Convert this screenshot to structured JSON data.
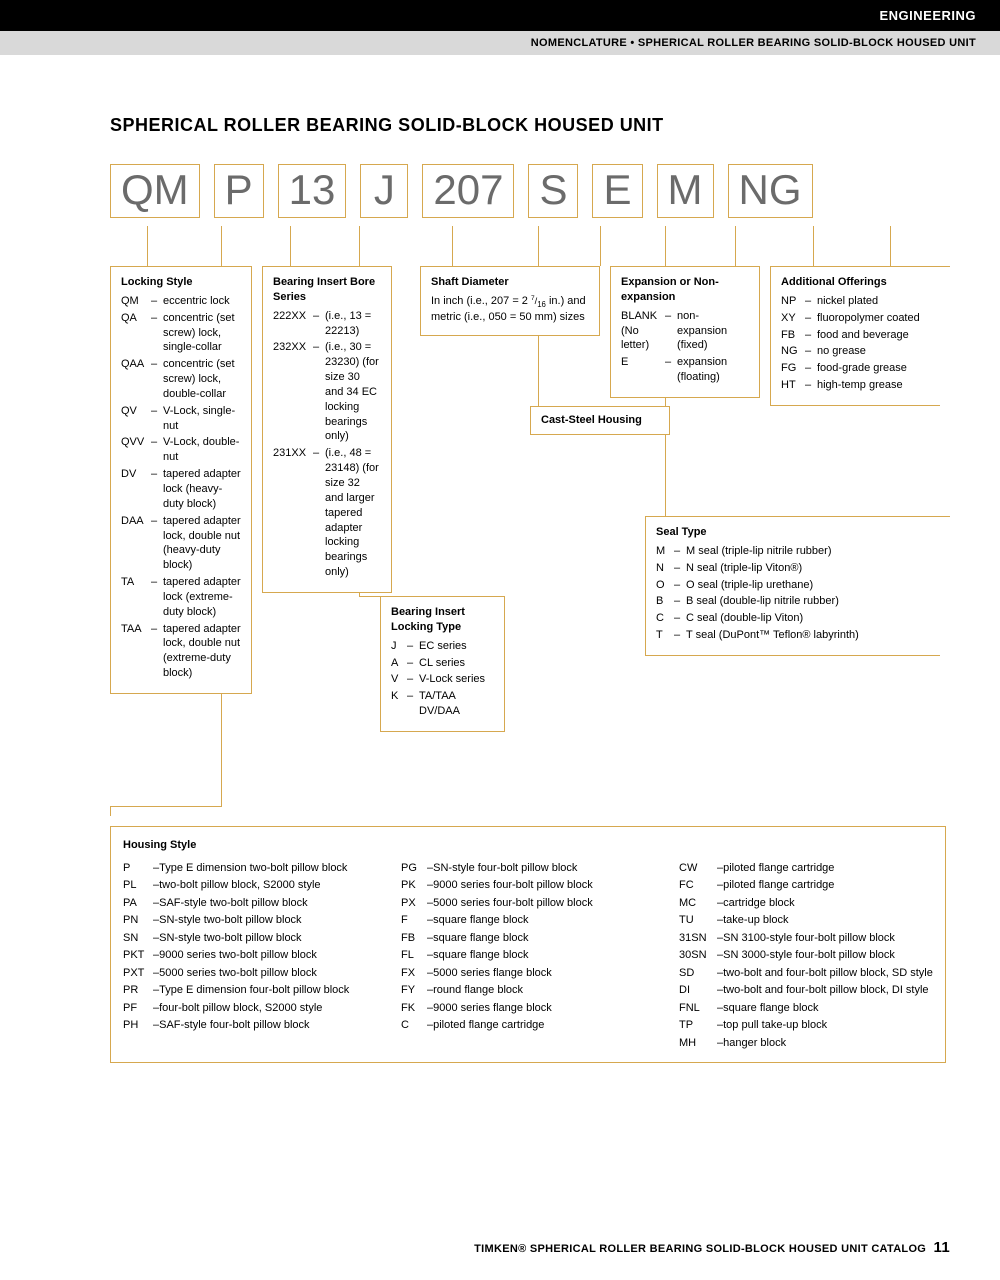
{
  "header": {
    "category": "ENGINEERING",
    "subtitle": "NOMENCLATURE • SPHERICAL ROLLER BEARING SOLID-BLOCK HOUSED UNIT"
  },
  "page_title": "SPHERICAL ROLLER BEARING SOLID-BLOCK HOUSED UNIT",
  "code_parts": [
    "QM",
    "P",
    "13",
    "J",
    "207",
    "S",
    "E",
    "M",
    "NG"
  ],
  "locking_style": {
    "title": "Locking Style",
    "items": [
      {
        "c": "QM",
        "d": "eccentric lock"
      },
      {
        "c": "QA",
        "d": "concentric (set screw) lock, single-collar"
      },
      {
        "c": "QAA",
        "d": "concentric (set screw) lock, double-collar"
      },
      {
        "c": "QV",
        "d": "V-Lock, single-nut"
      },
      {
        "c": "QVV",
        "d": "V-Lock, double-nut"
      },
      {
        "c": "DV",
        "d": "tapered adapter lock (heavy-duty block)"
      },
      {
        "c": "DAA",
        "d": "tapered adapter lock, double nut (heavy-duty block)"
      },
      {
        "c": "TA",
        "d": "tapered adapter lock (extreme-duty block)"
      },
      {
        "c": "TAA",
        "d": "tapered adapter lock, double nut (extreme-duty block)"
      }
    ]
  },
  "bore_series": {
    "title": "Bearing Insert Bore Series",
    "items": [
      {
        "c": "222XX",
        "d": "(i.e., 13 = 22213)"
      },
      {
        "c": "232XX",
        "d": "(i.e., 30 = 23230) (for size 30 and 34 EC locking bearings only)"
      },
      {
        "c": "231XX",
        "d": "(i.e., 48 = 23148) (for size 32 and larger tapered adapter locking bearings only)"
      }
    ]
  },
  "locking_type": {
    "title": "Bearing Insert Locking Type",
    "items": [
      {
        "c": "J",
        "d": "EC series"
      },
      {
        "c": "A",
        "d": "CL series"
      },
      {
        "c": "V",
        "d": "V-Lock series"
      },
      {
        "c": "K",
        "d": "TA/TAA DV/DAA"
      }
    ]
  },
  "shaft_diameter": {
    "title": "Shaft Diameter",
    "text": "In inch (i.e., 207 = 2 7/16 in.) and metric (i.e., 050 = 50 mm) sizes"
  },
  "cast_steel": "Cast-Steel Housing",
  "expansion": {
    "title": "Expansion or Non-expansion",
    "items": [
      {
        "c": "BLANK (No letter)",
        "d": "non-expansion (fixed)"
      },
      {
        "c": "E",
        "d": "expansion (floating)"
      }
    ]
  },
  "seal_type": {
    "title": "Seal Type",
    "items": [
      {
        "c": "M",
        "d": "M seal (triple-lip nitrile rubber)"
      },
      {
        "c": "N",
        "d": "N seal (triple-lip Viton®)"
      },
      {
        "c": "O",
        "d": "O seal (triple-lip urethane)"
      },
      {
        "c": "B",
        "d": "B seal (double-lip nitrile rubber)"
      },
      {
        "c": "C",
        "d": "C seal (double-lip Viton)"
      },
      {
        "c": "T",
        "d": "T seal (DuPont™ Teflon® labyrinth)"
      }
    ]
  },
  "additional": {
    "title": "Additional Offerings",
    "items": [
      {
        "c": "NP",
        "d": "nickel plated"
      },
      {
        "c": "XY",
        "d": "fluoropolymer coated"
      },
      {
        "c": "FB",
        "d": "food and beverage"
      },
      {
        "c": "NG",
        "d": "no grease"
      },
      {
        "c": "FG",
        "d": "food-grade grease"
      },
      {
        "c": "HT",
        "d": "high-temp grease"
      }
    ]
  },
  "housing_style": {
    "title": "Housing Style",
    "col1": [
      {
        "c": "P",
        "d": "Type E dimension two-bolt pillow block"
      },
      {
        "c": "PL",
        "d": "two-bolt pillow block, S2000 style"
      },
      {
        "c": "PA",
        "d": "SAF-style two-bolt pillow block"
      },
      {
        "c": "PN",
        "d": "SN-style two-bolt pillow block"
      },
      {
        "c": "SN",
        "d": "SN-style two-bolt pillow block"
      },
      {
        "c": "PKT",
        "d": "9000 series two-bolt pillow block"
      },
      {
        "c": "PXT",
        "d": "5000 series two-bolt pillow block"
      },
      {
        "c": "PR",
        "d": "Type E dimension four-bolt pillow block"
      },
      {
        "c": "PF",
        "d": "four-bolt pillow block, S2000 style"
      },
      {
        "c": "PH",
        "d": "SAF-style four-bolt pillow block"
      }
    ],
    "col2": [
      {
        "c": "PG",
        "d": "SN-style four-bolt pillow block"
      },
      {
        "c": "PK",
        "d": "9000 series four-bolt pillow block"
      },
      {
        "c": "PX",
        "d": "5000 series four-bolt pillow block"
      },
      {
        "c": "F",
        "d": "square flange block"
      },
      {
        "c": "FB",
        "d": "square flange block"
      },
      {
        "c": "FL",
        "d": "square flange block"
      },
      {
        "c": "FX",
        "d": "5000 series flange block"
      },
      {
        "c": "FY",
        "d": "round flange block"
      },
      {
        "c": "FK",
        "d": "9000 series flange block"
      },
      {
        "c": "C",
        "d": "piloted flange cartridge"
      }
    ],
    "col3": [
      {
        "c": "CW",
        "d": "piloted flange cartridge"
      },
      {
        "c": "FC",
        "d": "piloted flange cartridge"
      },
      {
        "c": "MC",
        "d": "cartridge block"
      },
      {
        "c": "TU",
        "d": "take-up block"
      },
      {
        "c": "31SN",
        "d": "SN 3100-style four-bolt pillow block"
      },
      {
        "c": "30SN",
        "d": "SN 3000-style four-bolt pillow block"
      },
      {
        "c": "SD",
        "d": "two-bolt and four-bolt pillow block, SD style"
      },
      {
        "c": "DI",
        "d": "two-bolt and four-bolt pillow block, DI style"
      },
      {
        "c": "FNL",
        "d": "square flange block"
      },
      {
        "c": "TP",
        "d": "top pull take-up block"
      },
      {
        "c": "MH",
        "d": "hanger block"
      }
    ]
  },
  "footer": {
    "text": "TIMKEN® SPHERICAL ROLLER BEARING SOLID-BLOCK HOUSED UNIT CATALOG",
    "page": "11"
  },
  "colors": {
    "accent": "#d6a84f",
    "code_text": "#6b6b6b",
    "black": "#000000",
    "gray_bar": "#d9d9d9"
  }
}
